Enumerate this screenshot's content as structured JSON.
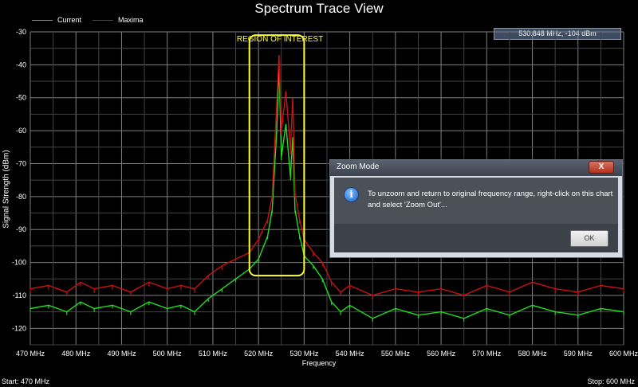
{
  "chart_data": {
    "type": "line",
    "title": "Spectrum Trace View",
    "xlabel": "Frequency",
    "ylabel": "Signal Strength (dBm)",
    "xlim": [
      470,
      600
    ],
    "ylim": [
      -125,
      -30
    ],
    "x_ticks": [
      470,
      480,
      490,
      500,
      510,
      520,
      530,
      540,
      550,
      560,
      570,
      580,
      590,
      600
    ],
    "x_tick_labels": [
      "470 MHz",
      "480 MHz",
      "490 MHz",
      "500 MHz",
      "510 MHz",
      "520 MHz",
      "530 MHz",
      "540 MHz",
      "550 MHz",
      "560 MHz",
      "570 MHz",
      "580 MHz",
      "590 MHz",
      "600 MHz"
    ],
    "y_ticks": [
      -30,
      -40,
      -50,
      -60,
      -70,
      -80,
      -90,
      -100,
      -110,
      -120
    ],
    "y_tick_labels": [
      "-30",
      "-40",
      "-50",
      "-60",
      "-70",
      "-80",
      "-90",
      "-100",
      "-110",
      "-120"
    ],
    "grid": true,
    "legend": "top-left",
    "series": [
      {
        "name": "Current",
        "color": "#22dd22",
        "x": [
          470,
          474,
          478,
          481,
          484,
          488,
          492,
          496,
          500,
          503,
          506,
          509,
          512,
          515,
          518,
          520,
          522,
          523,
          524,
          524.5,
          525,
          526,
          527,
          527.5,
          528,
          529,
          530,
          532,
          534,
          536,
          538,
          540,
          545,
          550,
          555,
          560,
          565,
          570,
          575,
          580,
          585,
          590,
          595,
          600
        ],
        "y": [
          -114,
          -113,
          -115,
          -112,
          -114,
          -113,
          -115,
          -112,
          -114,
          -113,
          -115,
          -111,
          -108,
          -105,
          -102,
          -99,
          -92,
          -84,
          -60,
          -40,
          -68,
          -58,
          -74,
          -62,
          -84,
          -92,
          -98,
          -101,
          -105,
          -112,
          -115,
          -113,
          -117,
          -114,
          -116,
          -115,
          -117,
          -114,
          -116,
          -113,
          -115,
          -116,
          -114,
          -115
        ]
      },
      {
        "name": "Maxima",
        "color": "#cc1111",
        "x": [
          470,
          474,
          478,
          481,
          484,
          488,
          492,
          496,
          500,
          503,
          506,
          509,
          512,
          515,
          518,
          520,
          522,
          523,
          524,
          524.5,
          525,
          526,
          527,
          527.5,
          528,
          529,
          530,
          532,
          534,
          536,
          538,
          540,
          545,
          550,
          555,
          560,
          565,
          570,
          575,
          580,
          585,
          590,
          595,
          600
        ],
        "y": [
          -108,
          -107,
          -109,
          -106,
          -108,
          -107,
          -109,
          -106,
          -108,
          -107,
          -108,
          -104,
          -101,
          -99,
          -97,
          -93,
          -87,
          -80,
          -52,
          -37,
          -60,
          -48,
          -66,
          -50,
          -79,
          -87,
          -93,
          -97,
          -100,
          -106,
          -109,
          -107,
          -110,
          -108,
          -109,
          -108,
          -110,
          -107,
          -109,
          -106,
          -108,
          -109,
          -107,
          -108
        ]
      }
    ],
    "annotations": [
      {
        "text": "REGION OF INTEREST",
        "color": "#ffff33",
        "x_range": [
          518,
          530
        ],
        "y_range": [
          -104,
          -31
        ]
      }
    ]
  },
  "legend": {
    "current_label": "Current",
    "maxima_label": "Maxima"
  },
  "cursor_readout": "530.848 MHz,   -104 dBm",
  "footer": {
    "start": "Start: 470 MHz",
    "stop": "Stop: 600 MHz"
  },
  "dialog": {
    "title": "Zoom Mode",
    "close_label": "X",
    "info_icon_glyph": "i",
    "message": "To unzoom and return to original frequency range, right-click on this chart and select 'Zoom Out'...",
    "ok_label": "OK"
  },
  "colors": {
    "region_outline": "#ffff33",
    "grid": "#808080",
    "dialog_bg": "#d6dce3"
  }
}
